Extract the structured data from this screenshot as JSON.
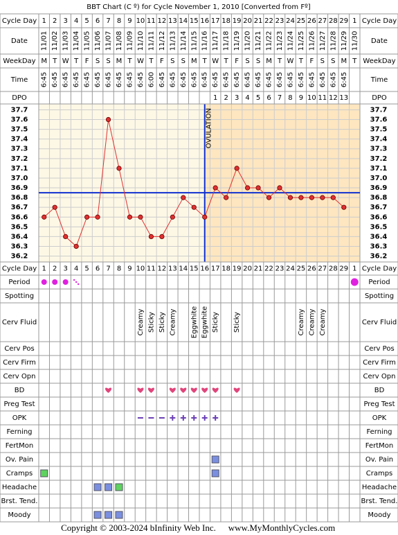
{
  "title": "BBT Chart (C º) for Cycle November 1, 2010  [Converted from Fº]",
  "row_labels": [
    "Cycle Day",
    "Date",
    "WeekDay",
    "Time",
    "DPO",
    "Cycle Day",
    "Period",
    "Spotting",
    "Cerv Fluid",
    "Cerv Pos",
    "Cerv Firm",
    "Cerv Opn",
    "BD",
    "Preg Test",
    "OPK",
    "Ferning",
    "FertMon",
    "Ov. Pain",
    "Cramps",
    "Headache",
    "Brst. Tend.",
    "Moody"
  ],
  "cycle_days": [
    1,
    2,
    3,
    4,
    5,
    6,
    7,
    8,
    9,
    10,
    11,
    12,
    13,
    14,
    15,
    16,
    17,
    18,
    19,
    20,
    21,
    22,
    23,
    24,
    25,
    26,
    27,
    28,
    29,
    1
  ],
  "dates": [
    "11/01",
    "11/02",
    "11/03",
    "11/04",
    "11/05",
    "11/06",
    "11/07",
    "11/08",
    "11/09",
    "11/10",
    "11/11",
    "11/12",
    "11/13",
    "11/14",
    "11/15",
    "11/16",
    "11/17",
    "11/18",
    "11/19",
    "11/20",
    "11/21",
    "11/22",
    "11/23",
    "11/24",
    "11/25",
    "11/26",
    "11/27",
    "11/28",
    "11/29",
    "11/30"
  ],
  "weekdays": [
    "M",
    "T",
    "W",
    "T",
    "F",
    "S",
    "S",
    "M",
    "T",
    "W",
    "T",
    "F",
    "S",
    "S",
    "M",
    "T",
    "W",
    "T",
    "F",
    "S",
    "S",
    "M",
    "T",
    "W",
    "T",
    "F",
    "S",
    "S",
    "M",
    "T"
  ],
  "times": [
    "6:45",
    "6:45",
    "6:45",
    "6:45",
    "6:45",
    "6:45",
    "6:45",
    "6:45",
    "6:45",
    "6:45",
    "6:00",
    "6:45",
    "6:45",
    "6:45",
    "6:45",
    "6:45",
    "6:45",
    "6:45",
    "6:45",
    "6:45",
    "6:45",
    "6:45",
    "6:45",
    "6:45",
    "6:45",
    "6:45",
    "6:45",
    "6:45",
    "6:45",
    null
  ],
  "dpo": [
    null,
    null,
    null,
    null,
    null,
    null,
    null,
    null,
    null,
    null,
    null,
    null,
    null,
    null,
    null,
    null,
    1,
    2,
    3,
    4,
    5,
    6,
    7,
    8,
    9,
    10,
    11,
    12,
    13,
    null
  ],
  "chart_data": {
    "type": "line",
    "values": [
      36.6,
      36.7,
      36.4,
      36.3,
      36.6,
      36.6,
      37.6,
      37.1,
      36.6,
      36.6,
      36.4,
      36.4,
      36.6,
      36.8,
      36.7,
      36.6,
      36.9,
      36.8,
      37.1,
      36.9,
      36.9,
      36.8,
      36.9,
      36.8,
      36.8,
      36.8,
      36.8,
      36.8,
      36.7,
      null
    ],
    "color": "#e03030",
    "ylim": [
      36.14,
      37.76
    ],
    "yticks": [
      37.7,
      37.6,
      37.5,
      37.4,
      37.3,
      37.2,
      37.1,
      {
        "value": 37,
        "label": "37.0"
      },
      36.9,
      36.8,
      36.7,
      36.6,
      36.5,
      36.4,
      36.3,
      36.2
    ],
    "grid": true,
    "coverline": 36.85,
    "ovulation_day": 16,
    "ovulation_label": "OVULATION"
  },
  "cerv_fluid": [
    null,
    null,
    null,
    null,
    null,
    null,
    null,
    null,
    null,
    "Creamy",
    "Sticky",
    "Sticky",
    "Creamy",
    null,
    "Eggwhite",
    "Eggwhite",
    "Sticky",
    null,
    "Sticky",
    null,
    null,
    null,
    null,
    null,
    "Creamy",
    "Creamy",
    "Creamy",
    null,
    null,
    null
  ],
  "copyright": "Copyright © 2003-2024 bInfinity Web Inc.",
  "website": "www.MyMonthlyCycles.com"
}
